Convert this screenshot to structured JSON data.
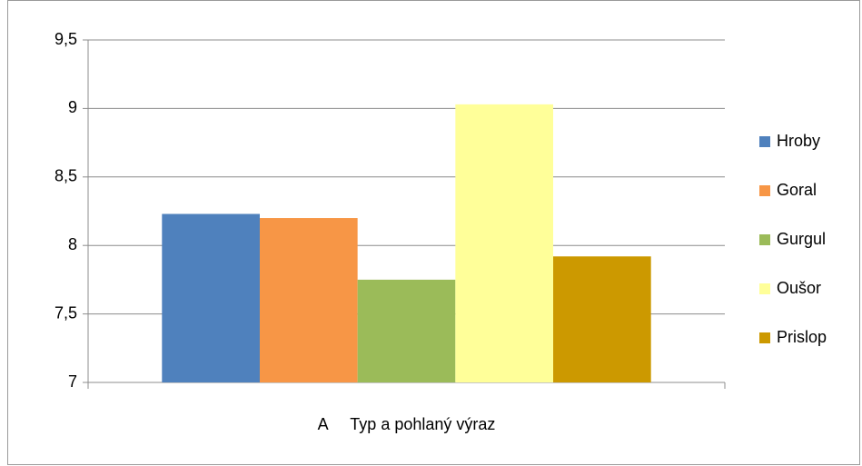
{
  "chart_data": {
    "type": "bar",
    "categories": [
      "A     Typ a pohlaný výraz"
    ],
    "series": [
      {
        "name": "Hroby",
        "color": "#4f81bd",
        "values": [
          8.23
        ]
      },
      {
        "name": "Goral",
        "color": "#f79646",
        "values": [
          8.2
        ]
      },
      {
        "name": "Gurgul",
        "color": "#9bbb59",
        "values": [
          7.75
        ]
      },
      {
        "name": "Oušor",
        "color": "#ffff99",
        "values": [
          9.03
        ]
      },
      {
        "name": "Prislop",
        "color": "#cc9900",
        "values": [
          7.92
        ]
      }
    ],
    "ylim": [
      7,
      9.5
    ],
    "yticks": [
      7,
      {
        "value": 7.5,
        "label": "7,5"
      },
      8,
      {
        "value": 8.5,
        "label": "8,5"
      },
      9,
      {
        "value": 9.5,
        "label": "9,5"
      }
    ],
    "grid": true,
    "legend": "right"
  }
}
